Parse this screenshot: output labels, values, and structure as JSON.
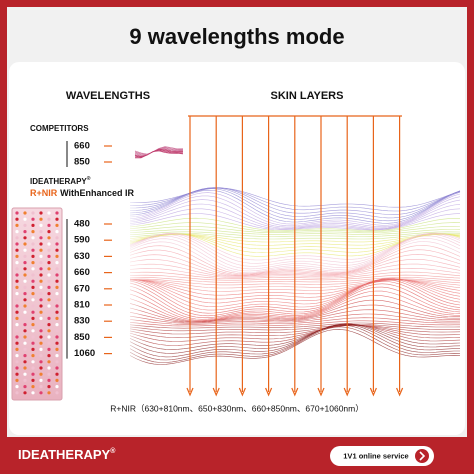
{
  "header": {
    "title": "9 wavelengths mode"
  },
  "columns": {
    "left": "WAVELENGTHS",
    "right": "SKIN LAYERS"
  },
  "competitors": {
    "label": "COMPETITORS",
    "wavelengths": [
      660,
      850
    ]
  },
  "product": {
    "brand": "IDEATHERAPY",
    "mark": "®",
    "mode": "R+NIR",
    "suffix": "WithEnhanced IR",
    "wavelengths": [
      480,
      590,
      630,
      660,
      670,
      810,
      830,
      850,
      1060
    ]
  },
  "caption": "R+NIR（630+810nm、650+830nm、660+850nm、670+1060nm）",
  "footer": {
    "brand": "IDEATHERAPY",
    "mark": "®",
    "service": "1V1 online service"
  }
}
